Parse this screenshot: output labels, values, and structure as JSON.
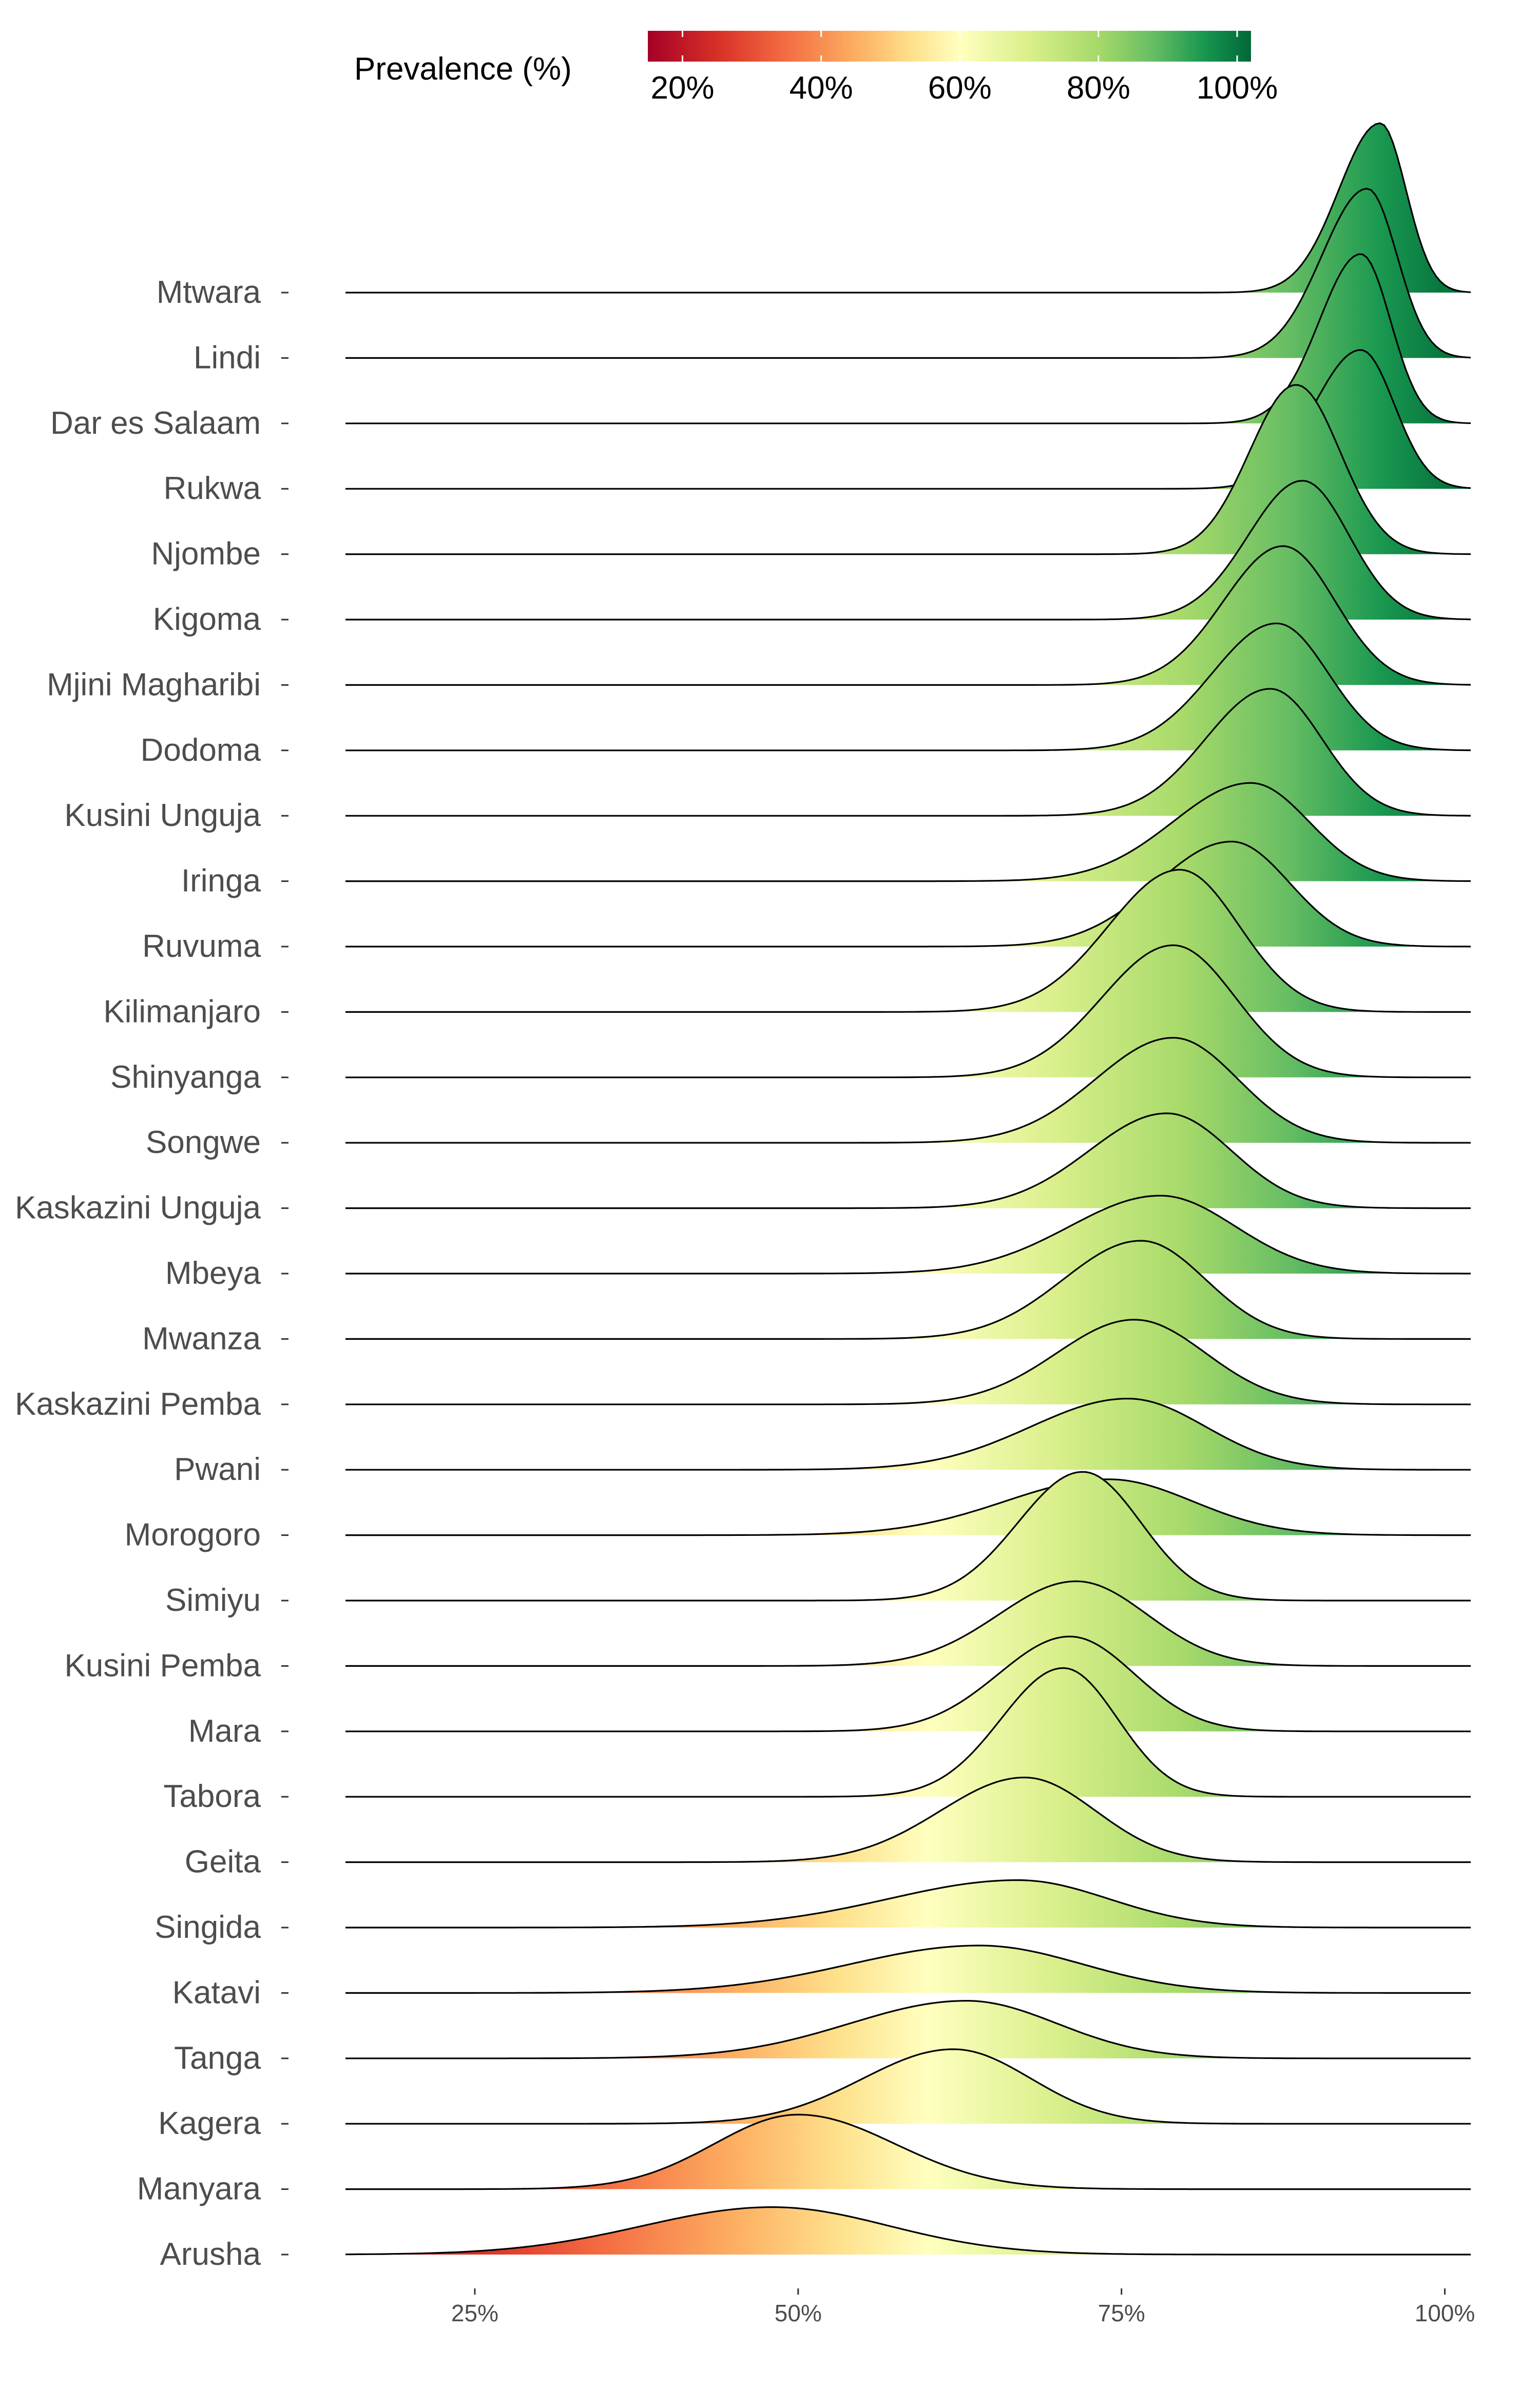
{
  "chart_data": {
    "type": "ridgeline",
    "xlabel": "",
    "ylabel": "",
    "xlim": [
      15,
      102
    ],
    "x_ticks": [
      {
        "value": 25,
        "label": "25%"
      },
      {
        "value": 50,
        "label": "50%"
      },
      {
        "value": 75,
        "label": "75%"
      },
      {
        "value": 100,
        "label": "100%"
      }
    ],
    "legend": {
      "title": "Prevalence (%)",
      "position": "top",
      "range": [
        15,
        102
      ],
      "ticks": [
        {
          "value": 20,
          "label": "20%"
        },
        {
          "value": 40,
          "label": "40%"
        },
        {
          "value": 60,
          "label": "60%"
        },
        {
          "value": 80,
          "label": "80%"
        },
        {
          "value": 100,
          "label": "100%"
        }
      ]
    },
    "colorscale": [
      {
        "value": 15,
        "color": "#a50026"
      },
      {
        "value": 25,
        "color": "#d73027"
      },
      {
        "value": 35,
        "color": "#f46d43"
      },
      {
        "value": 45,
        "color": "#fdae61"
      },
      {
        "value": 53,
        "color": "#fee08b"
      },
      {
        "value": 60,
        "color": "#ffffbf"
      },
      {
        "value": 70,
        "color": "#d9ef8b"
      },
      {
        "value": 80,
        "color": "#a6d96a"
      },
      {
        "value": 88,
        "color": "#66bd63"
      },
      {
        "value": 95,
        "color": "#1a9850"
      },
      {
        "value": 102,
        "color": "#006837"
      }
    ],
    "grid": false,
    "series": [
      {
        "name": "Mtwara",
        "peak": 95.0,
        "sd_left": 3.2,
        "sd_right": 2.0,
        "height": 1.0
      },
      {
        "name": "Lindi",
        "peak": 94.0,
        "sd_left": 3.5,
        "sd_right": 2.3,
        "height": 1.0
      },
      {
        "name": "Dar es Salaam",
        "peak": 93.5,
        "sd_left": 3.2,
        "sd_right": 2.3,
        "height": 1.0
      },
      {
        "name": "Rukwa",
        "peak": 93.5,
        "sd_left": 3.6,
        "sd_right": 2.6,
        "height": 0.82
      },
      {
        "name": "Njombe",
        "peak": 88.5,
        "sd_left": 3.6,
        "sd_right": 3.4,
        "height": 1.0
      },
      {
        "name": "Kigoma",
        "peak": 89.0,
        "sd_left": 4.2,
        "sd_right": 3.6,
        "height": 0.82
      },
      {
        "name": "Mjini Magharibi",
        "peak": 87.5,
        "sd_left": 4.6,
        "sd_right": 4.0,
        "height": 0.82
      },
      {
        "name": "Dodoma",
        "peak": 87.0,
        "sd_left": 5.0,
        "sd_right": 4.0,
        "height": 0.75
      },
      {
        "name": "Kusini Unguja",
        "peak": 86.5,
        "sd_left": 5.0,
        "sd_right": 4.0,
        "height": 0.75
      },
      {
        "name": "Iringa",
        "peak": 85.0,
        "sd_left": 6.0,
        "sd_right": 4.5,
        "height": 0.58
      },
      {
        "name": "Ruvuma",
        "peak": 83.5,
        "sd_left": 5.8,
        "sd_right": 4.5,
        "height": 0.62
      },
      {
        "name": "Kilimanjaro",
        "peak": 79.5,
        "sd_left": 5.5,
        "sd_right": 4.6,
        "height": 0.84
      },
      {
        "name": "Shinyanga",
        "peak": 79.0,
        "sd_left": 5.5,
        "sd_right": 4.8,
        "height": 0.78
      },
      {
        "name": "Songwe",
        "peak": 79.0,
        "sd_left": 6.0,
        "sd_right": 5.0,
        "height": 0.62
      },
      {
        "name": "Kaskazini Unguja",
        "peak": 78.5,
        "sd_left": 6.0,
        "sd_right": 5.0,
        "height": 0.56
      },
      {
        "name": "Mbeya",
        "peak": 78.0,
        "sd_left": 7.0,
        "sd_right": 5.8,
        "height": 0.46
      },
      {
        "name": "Mwanza",
        "peak": 76.5,
        "sd_left": 6.0,
        "sd_right": 5.0,
        "height": 0.58
      },
      {
        "name": "Kaskazini Pemba",
        "peak": 76.0,
        "sd_left": 6.0,
        "sd_right": 5.5,
        "height": 0.5
      },
      {
        "name": "Pwani",
        "peak": 75.5,
        "sd_left": 7.5,
        "sd_right": 6.0,
        "height": 0.42
      },
      {
        "name": "Morogoro",
        "peak": 74.0,
        "sd_left": 8.0,
        "sd_right": 6.5,
        "height": 0.33
      },
      {
        "name": "Simiyu",
        "peak": 72.0,
        "sd_left": 5.0,
        "sd_right": 4.5,
        "height": 0.76
      },
      {
        "name": "Kusini Pemba",
        "peak": 71.5,
        "sd_left": 6.0,
        "sd_right": 5.5,
        "height": 0.5
      },
      {
        "name": "Mara",
        "peak": 71.0,
        "sd_left": 5.5,
        "sd_right": 5.0,
        "height": 0.56
      },
      {
        "name": "Tabora",
        "peak": 70.5,
        "sd_left": 4.8,
        "sd_right": 4.2,
        "height": 0.76
      },
      {
        "name": "Geita",
        "peak": 67.5,
        "sd_left": 6.5,
        "sd_right": 5.5,
        "height": 0.5
      },
      {
        "name": "Singida",
        "peak": 67.0,
        "sd_left": 10.0,
        "sd_right": 7.0,
        "height": 0.28
      },
      {
        "name": "Katavi",
        "peak": 64.0,
        "sd_left": 10.0,
        "sd_right": 8.0,
        "height": 0.28
      },
      {
        "name": "Tanga",
        "peak": 63.0,
        "sd_left": 9.0,
        "sd_right": 7.0,
        "height": 0.34
      },
      {
        "name": "Kagera",
        "peak": 62.0,
        "sd_left": 7.0,
        "sd_right": 6.0,
        "height": 0.44
      },
      {
        "name": "Manyara",
        "peak": 50.0,
        "sd_left": 6.5,
        "sd_right": 7.5,
        "height": 0.44
      },
      {
        "name": "Arusha",
        "peak": 48.0,
        "sd_left": 10.0,
        "sd_right": 9.0,
        "height": 0.28
      }
    ]
  }
}
